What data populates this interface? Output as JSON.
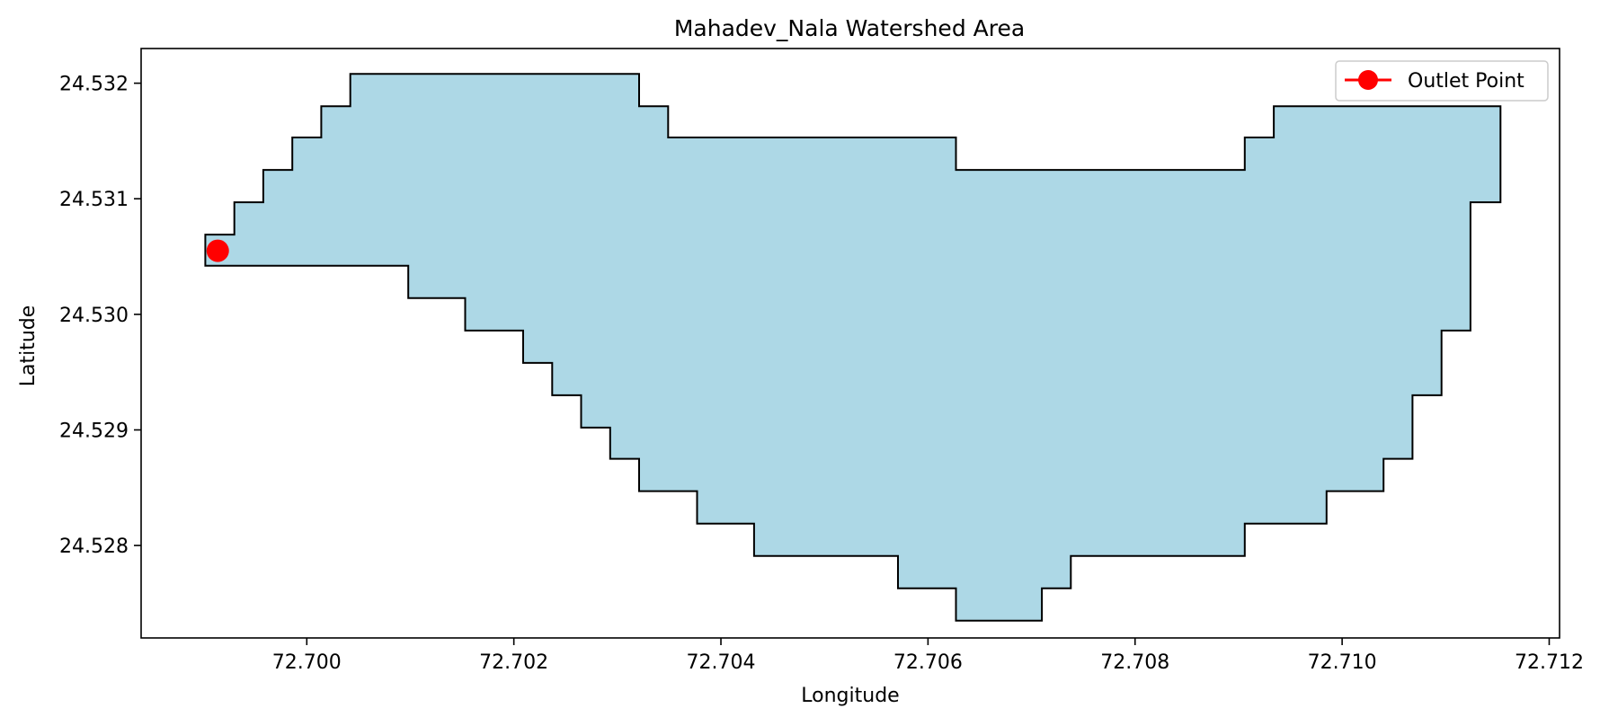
{
  "chart_data": {
    "type": "map",
    "title": "Mahadev_Nala Watershed Area",
    "xlabel": "Longitude",
    "ylabel": "Latitude",
    "xlim": [
      72.6984,
      72.7121
    ],
    "ylim": [
      24.5272,
      24.5323
    ],
    "xticks": [
      72.7,
      72.702,
      72.704,
      72.706,
      72.708,
      72.71,
      72.712
    ],
    "xtick_labels": [
      "72.700",
      "72.702",
      "72.704",
      "72.706",
      "72.708",
      "72.710",
      "72.712"
    ],
    "yticks": [
      24.528,
      24.529,
      24.53,
      24.531,
      24.532
    ],
    "ytick_labels": [
      "24.528",
      "24.529",
      "24.530",
      "24.531",
      "24.532"
    ],
    "grid": false,
    "legend": {
      "position": "top-right",
      "entries": [
        "Outlet Point"
      ]
    },
    "colors": {
      "fill": "#add8e6",
      "edge": "#000000",
      "outlet": "#ff0000"
    },
    "watershed_polygon": [
      [
        72.69902,
        24.53042
      ],
      [
        72.69902,
        24.53069
      ],
      [
        72.6993,
        24.53069
      ],
      [
        72.6993,
        24.53097
      ],
      [
        72.69958,
        24.53097
      ],
      [
        72.69958,
        24.53125
      ],
      [
        72.69986,
        24.53125
      ],
      [
        72.69986,
        24.53153
      ],
      [
        72.70014,
        24.53153
      ],
      [
        72.70014,
        24.5318
      ],
      [
        72.70042,
        24.5318
      ],
      [
        72.70042,
        24.53208
      ],
      [
        72.70321,
        24.53208
      ],
      [
        72.70321,
        24.5318
      ],
      [
        72.70349,
        24.5318
      ],
      [
        72.70349,
        24.53153
      ],
      [
        72.70627,
        24.53153
      ],
      [
        72.70627,
        24.53125
      ],
      [
        72.70906,
        24.53125
      ],
      [
        72.70906,
        24.53153
      ],
      [
        72.70934,
        24.53153
      ],
      [
        72.70934,
        24.5318
      ],
      [
        72.71153,
        24.5318
      ],
      [
        72.71153,
        24.53097
      ],
      [
        72.71124,
        24.53097
      ],
      [
        72.71124,
        24.52986
      ],
      [
        72.71096,
        24.52986
      ],
      [
        72.71096,
        24.5293
      ],
      [
        72.71068,
        24.5293
      ],
      [
        72.71068,
        24.52875
      ],
      [
        72.7104,
        24.52875
      ],
      [
        72.7104,
        24.52847
      ],
      [
        72.70985,
        24.52847
      ],
      [
        72.70985,
        24.52819
      ],
      [
        72.70906,
        24.52819
      ],
      [
        72.70906,
        24.52791
      ],
      [
        72.70738,
        24.52791
      ],
      [
        72.70738,
        24.52763
      ],
      [
        72.7071,
        24.52763
      ],
      [
        72.7071,
        24.52735
      ],
      [
        72.70627,
        24.52735
      ],
      [
        72.70627,
        24.52763
      ],
      [
        72.70571,
        24.52763
      ],
      [
        72.70571,
        24.52791
      ],
      [
        72.70432,
        24.52791
      ],
      [
        72.70432,
        24.52819
      ],
      [
        72.70377,
        24.52819
      ],
      [
        72.70377,
        24.52847
      ],
      [
        72.70321,
        24.52847
      ],
      [
        72.70321,
        24.52875
      ],
      [
        72.70293,
        24.52875
      ],
      [
        72.70293,
        24.52902
      ],
      [
        72.70265,
        24.52902
      ],
      [
        72.70265,
        24.5293
      ],
      [
        72.70237,
        24.5293
      ],
      [
        72.70237,
        24.52958
      ],
      [
        72.70209,
        24.52958
      ],
      [
        72.70209,
        24.52986
      ],
      [
        72.70153,
        24.52986
      ],
      [
        72.70153,
        24.53014
      ],
      [
        72.70098,
        24.53014
      ],
      [
        72.70098,
        24.53042
      ]
    ],
    "outlet_point": {
      "lon": 72.69914,
      "lat": 24.53055,
      "label": "Outlet Point"
    }
  }
}
